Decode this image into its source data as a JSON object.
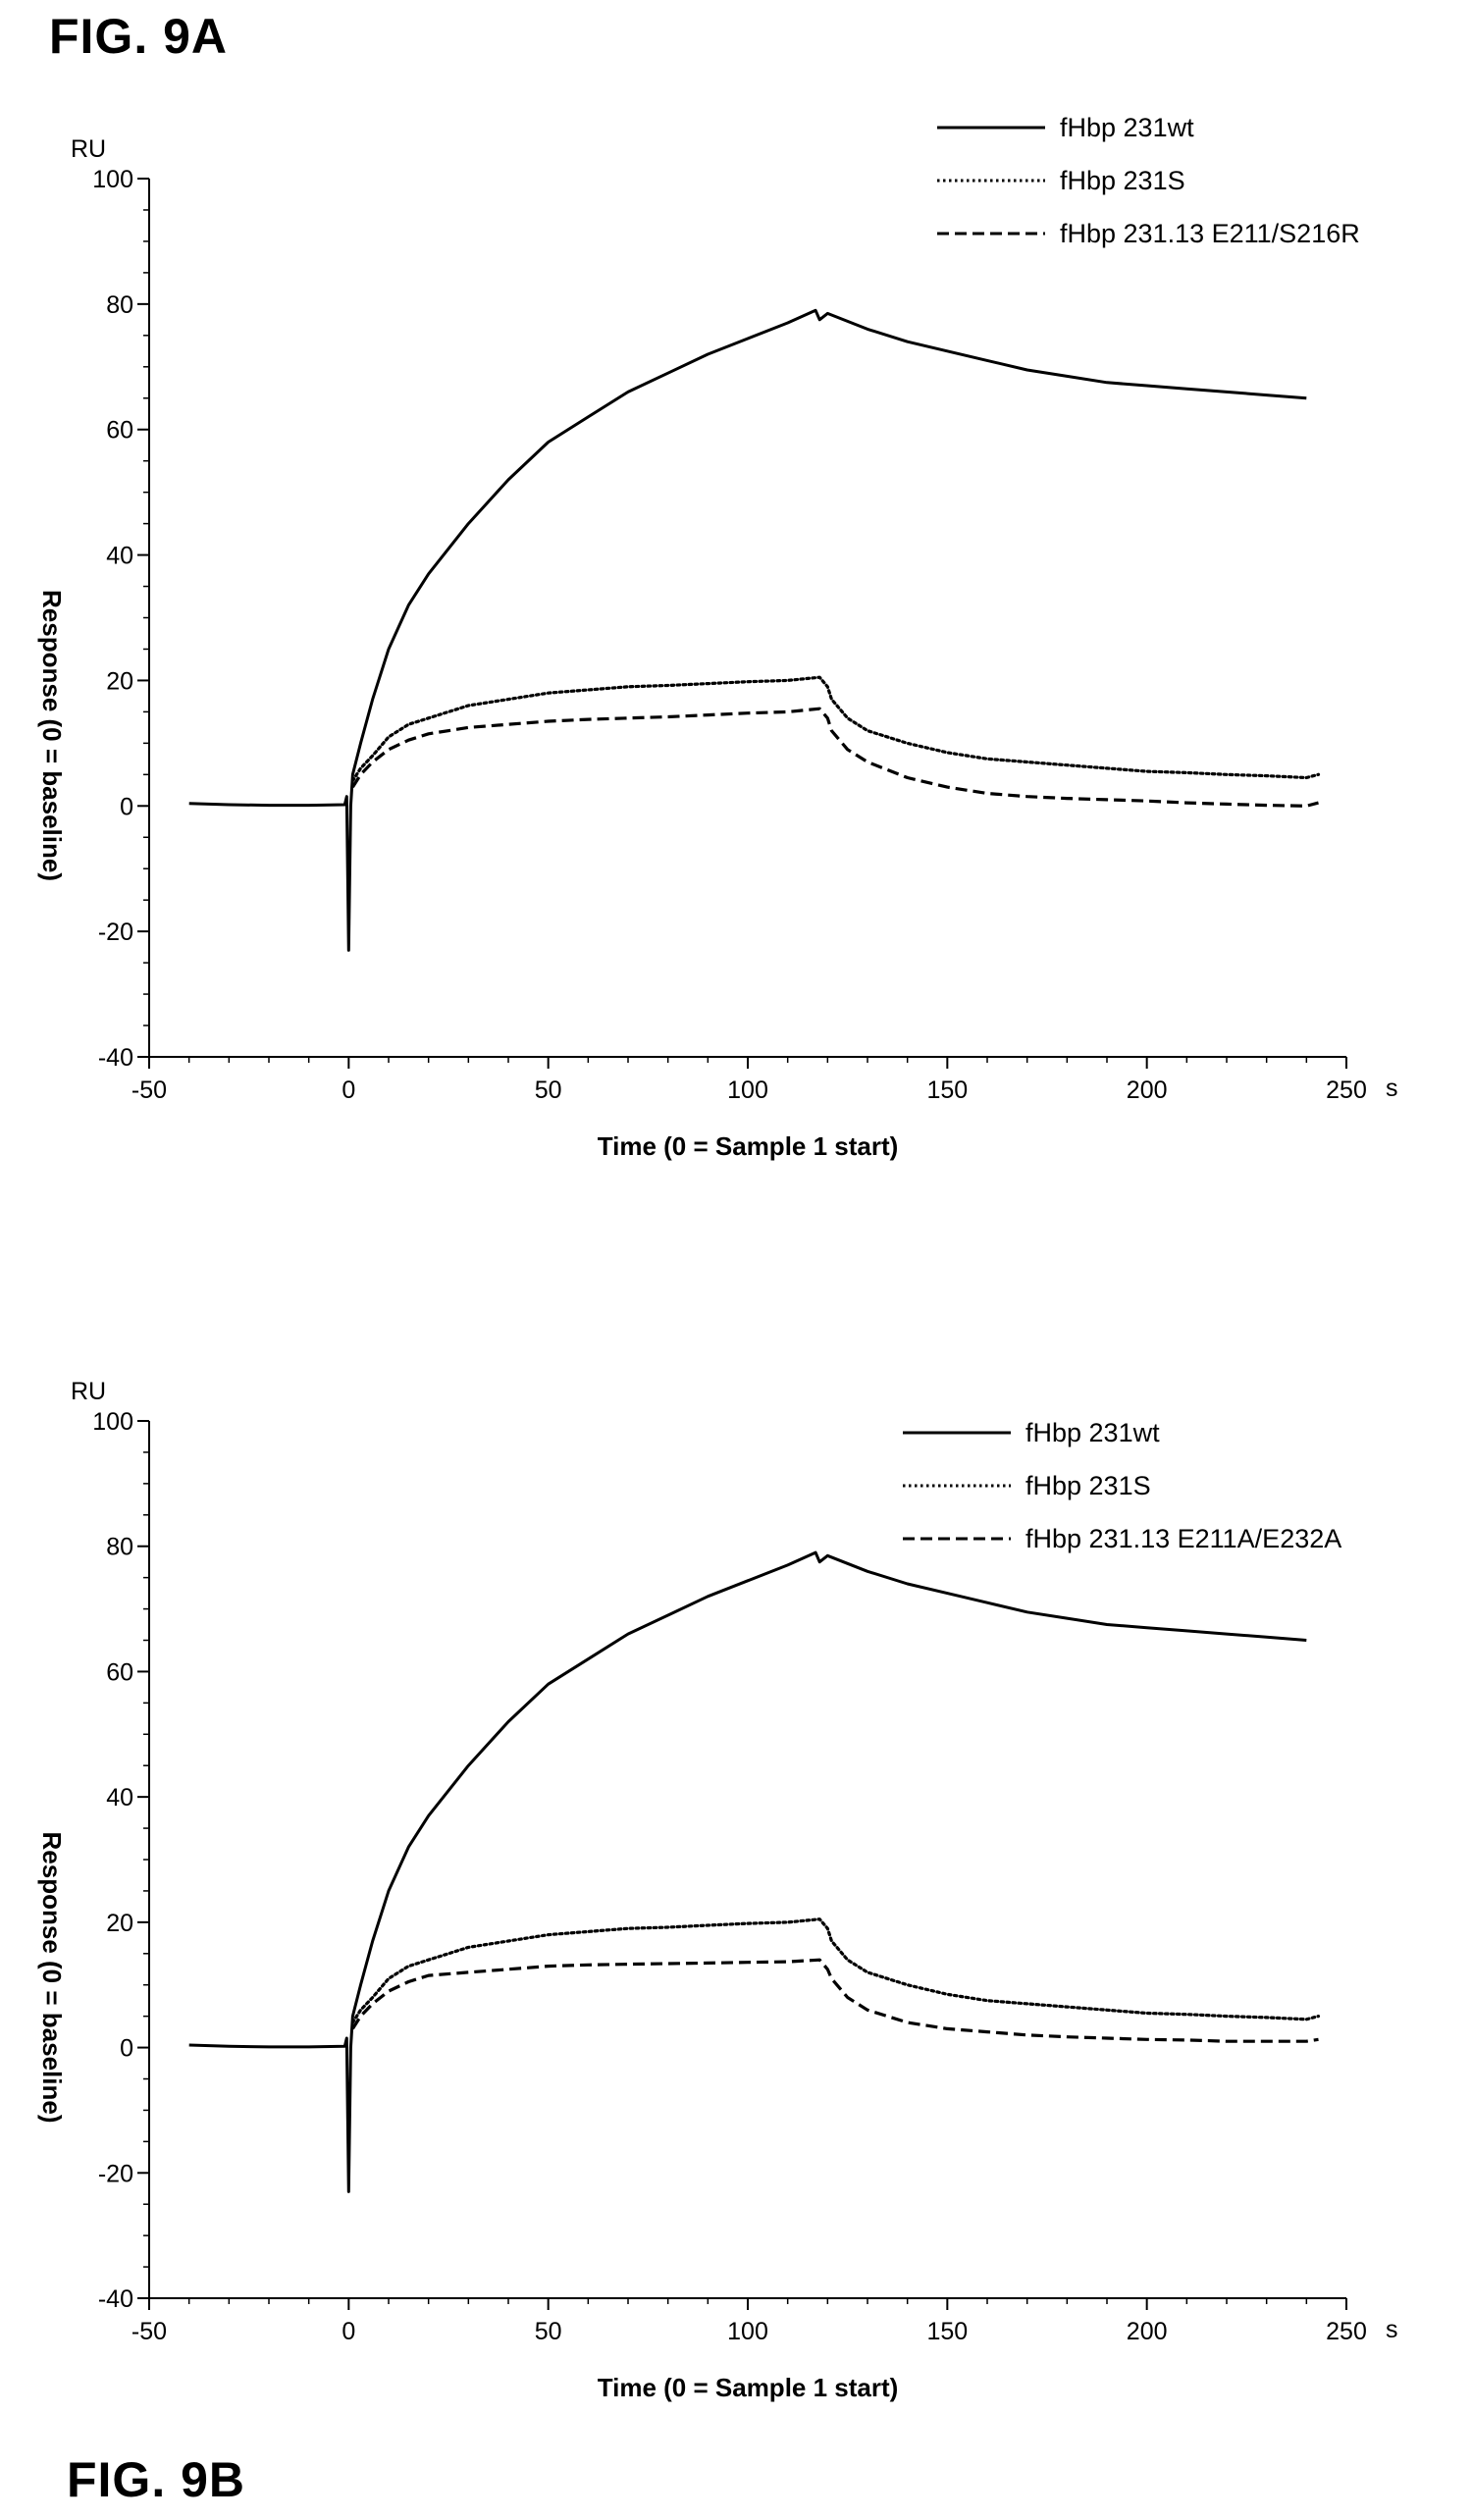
{
  "figure": {
    "title_a": "FIG. 9A",
    "title_b": "FIG. 9B"
  },
  "colors": {
    "ink": "#000000",
    "background": "#ffffff"
  },
  "chart_data": [
    {
      "type": "line",
      "panel": "FIG. 9A",
      "xlabel": "Time (0 = Sample 1 start)",
      "ylabel": "Response (0 = baseline)",
      "x_unit": "s",
      "y_unit": "RU",
      "xlim": [
        -50,
        250
      ],
      "ylim": [
        -40,
        100
      ],
      "x_ticks": [
        -50,
        0,
        50,
        100,
        150,
        200,
        250
      ],
      "y_ticks": [
        -40,
        -20,
        0,
        20,
        40,
        60,
        80,
        100
      ],
      "grid": false,
      "legend_position": "top-right",
      "series": [
        {
          "name": "fHbp 231wt",
          "style": "solid",
          "points": [
            [
              -40,
              0.4
            ],
            [
              -30,
              0.2
            ],
            [
              -20,
              0.1
            ],
            [
              -10,
              0.1
            ],
            [
              -1,
              0.2
            ],
            [
              -0.5,
              1.5
            ],
            [
              0,
              -23
            ],
            [
              0.5,
              0
            ],
            [
              1,
              5
            ],
            [
              3,
              10
            ],
            [
              6,
              17
            ],
            [
              10,
              25
            ],
            [
              15,
              32
            ],
            [
              20,
              37
            ],
            [
              30,
              45
            ],
            [
              40,
              52
            ],
            [
              50,
              58
            ],
            [
              60,
              62
            ],
            [
              70,
              66
            ],
            [
              80,
              69
            ],
            [
              90,
              72
            ],
            [
              100,
              74.5
            ],
            [
              110,
              77
            ],
            [
              117,
              79
            ],
            [
              118,
              77.5
            ],
            [
              120,
              78.5
            ],
            [
              130,
              76
            ],
            [
              140,
              74
            ],
            [
              150,
              72.5
            ],
            [
              160,
              71
            ],
            [
              170,
              69.5
            ],
            [
              180,
              68.5
            ],
            [
              190,
              67.5
            ],
            [
              200,
              67
            ],
            [
              210,
              66.5
            ],
            [
              220,
              66
            ],
            [
              230,
              65.5
            ],
            [
              240,
              65
            ]
          ]
        },
        {
          "name": "fHbp 231S",
          "style": "dotted",
          "points": [
            [
              1,
              4
            ],
            [
              3,
              6
            ],
            [
              6,
              8
            ],
            [
              10,
              11
            ],
            [
              15,
              13
            ],
            [
              20,
              14
            ],
            [
              30,
              16
            ],
            [
              40,
              17
            ],
            [
              50,
              18
            ],
            [
              60,
              18.5
            ],
            [
              70,
              19
            ],
            [
              80,
              19.2
            ],
            [
              90,
              19.5
            ],
            [
              100,
              19.8
            ],
            [
              110,
              20
            ],
            [
              118,
              20.5
            ],
            [
              120,
              19
            ],
            [
              121,
              17
            ],
            [
              125,
              14
            ],
            [
              130,
              12
            ],
            [
              140,
              10
            ],
            [
              150,
              8.5
            ],
            [
              160,
              7.5
            ],
            [
              170,
              7
            ],
            [
              180,
              6.5
            ],
            [
              190,
              6
            ],
            [
              200,
              5.5
            ],
            [
              210,
              5.3
            ],
            [
              220,
              5
            ],
            [
              230,
              4.8
            ],
            [
              240,
              4.5
            ],
            [
              243,
              5
            ]
          ]
        },
        {
          "name": "fHbp 231.13 E211/S216R",
          "style": "dashed",
          "points": [
            [
              1,
              3
            ],
            [
              3,
              5
            ],
            [
              6,
              7
            ],
            [
              10,
              9
            ],
            [
              15,
              10.5
            ],
            [
              20,
              11.5
            ],
            [
              30,
              12.5
            ],
            [
              40,
              13
            ],
            [
              50,
              13.5
            ],
            [
              60,
              13.8
            ],
            [
              70,
              14
            ],
            [
              80,
              14.2
            ],
            [
              90,
              14.5
            ],
            [
              100,
              14.8
            ],
            [
              110,
              15
            ],
            [
              118,
              15.5
            ],
            [
              120,
              14
            ],
            [
              121,
              12
            ],
            [
              125,
              9
            ],
            [
              130,
              7
            ],
            [
              140,
              4.5
            ],
            [
              150,
              3
            ],
            [
              160,
              2
            ],
            [
              170,
              1.5
            ],
            [
              180,
              1.2
            ],
            [
              190,
              1
            ],
            [
              200,
              0.8
            ],
            [
              210,
              0.5
            ],
            [
              220,
              0.3
            ],
            [
              230,
              0.1
            ],
            [
              240,
              0
            ],
            [
              243,
              0.5
            ]
          ]
        }
      ]
    },
    {
      "type": "line",
      "panel": "FIG. 9B",
      "xlabel": "Time (0 = Sample 1 start)",
      "ylabel": "Response (0 = baseline)",
      "x_unit": "s",
      "y_unit": "RU",
      "xlim": [
        -50,
        250
      ],
      "ylim": [
        -40,
        100
      ],
      "x_ticks": [
        -50,
        0,
        50,
        100,
        150,
        200,
        250
      ],
      "y_ticks": [
        -40,
        -20,
        0,
        20,
        40,
        60,
        80,
        100
      ],
      "grid": false,
      "legend_position": "top-right",
      "series": [
        {
          "name": "fHbp 231wt",
          "style": "solid",
          "points": [
            [
              -40,
              0.4
            ],
            [
              -30,
              0.2
            ],
            [
              -20,
              0.1
            ],
            [
              -10,
              0.1
            ],
            [
              -1,
              0.2
            ],
            [
              -0.5,
              1.5
            ],
            [
              0,
              -23
            ],
            [
              0.5,
              0
            ],
            [
              1,
              5
            ],
            [
              3,
              10
            ],
            [
              6,
              17
            ],
            [
              10,
              25
            ],
            [
              15,
              32
            ],
            [
              20,
              37
            ],
            [
              30,
              45
            ],
            [
              40,
              52
            ],
            [
              50,
              58
            ],
            [
              60,
              62
            ],
            [
              70,
              66
            ],
            [
              80,
              69
            ],
            [
              90,
              72
            ],
            [
              100,
              74.5
            ],
            [
              110,
              77
            ],
            [
              117,
              79
            ],
            [
              118,
              77.5
            ],
            [
              120,
              78.5
            ],
            [
              130,
              76
            ],
            [
              140,
              74
            ],
            [
              150,
              72.5
            ],
            [
              160,
              71
            ],
            [
              170,
              69.5
            ],
            [
              180,
              68.5
            ],
            [
              190,
              67.5
            ],
            [
              200,
              67
            ],
            [
              210,
              66.5
            ],
            [
              220,
              66
            ],
            [
              230,
              65.5
            ],
            [
              240,
              65
            ]
          ]
        },
        {
          "name": "fHbp 231S",
          "style": "dotted",
          "points": [
            [
              1,
              4
            ],
            [
              3,
              6
            ],
            [
              6,
              8
            ],
            [
              10,
              11
            ],
            [
              15,
              13
            ],
            [
              20,
              14
            ],
            [
              30,
              16
            ],
            [
              40,
              17
            ],
            [
              50,
              18
            ],
            [
              60,
              18.5
            ],
            [
              70,
              19
            ],
            [
              80,
              19.2
            ],
            [
              90,
              19.5
            ],
            [
              100,
              19.8
            ],
            [
              110,
              20
            ],
            [
              118,
              20.5
            ],
            [
              120,
              19
            ],
            [
              121,
              17
            ],
            [
              125,
              14
            ],
            [
              130,
              12
            ],
            [
              140,
              10
            ],
            [
              150,
              8.5
            ],
            [
              160,
              7.5
            ],
            [
              170,
              7
            ],
            [
              180,
              6.5
            ],
            [
              190,
              6
            ],
            [
              200,
              5.5
            ],
            [
              210,
              5.3
            ],
            [
              220,
              5
            ],
            [
              230,
              4.8
            ],
            [
              240,
              4.5
            ],
            [
              243,
              5
            ]
          ]
        },
        {
          "name": "fHbp 231.13 E211A/E232A",
          "style": "dashed",
          "points": [
            [
              1,
              3
            ],
            [
              3,
              5
            ],
            [
              6,
              7
            ],
            [
              10,
              9
            ],
            [
              15,
              10.5
            ],
            [
              20,
              11.5
            ],
            [
              30,
              12
            ],
            [
              40,
              12.5
            ],
            [
              50,
              13
            ],
            [
              60,
              13.2
            ],
            [
              70,
              13.3
            ],
            [
              80,
              13.4
            ],
            [
              90,
              13.5
            ],
            [
              100,
              13.6
            ],
            [
              110,
              13.7
            ],
            [
              118,
              14
            ],
            [
              120,
              12.5
            ],
            [
              121,
              11
            ],
            [
              125,
              8
            ],
            [
              130,
              6
            ],
            [
              140,
              4
            ],
            [
              150,
              3
            ],
            [
              160,
              2.5
            ],
            [
              170,
              2
            ],
            [
              180,
              1.7
            ],
            [
              190,
              1.5
            ],
            [
              200,
              1.3
            ],
            [
              210,
              1.2
            ],
            [
              220,
              1
            ],
            [
              230,
              1
            ],
            [
              240,
              1
            ],
            [
              243,
              1.3
            ]
          ]
        }
      ]
    }
  ]
}
